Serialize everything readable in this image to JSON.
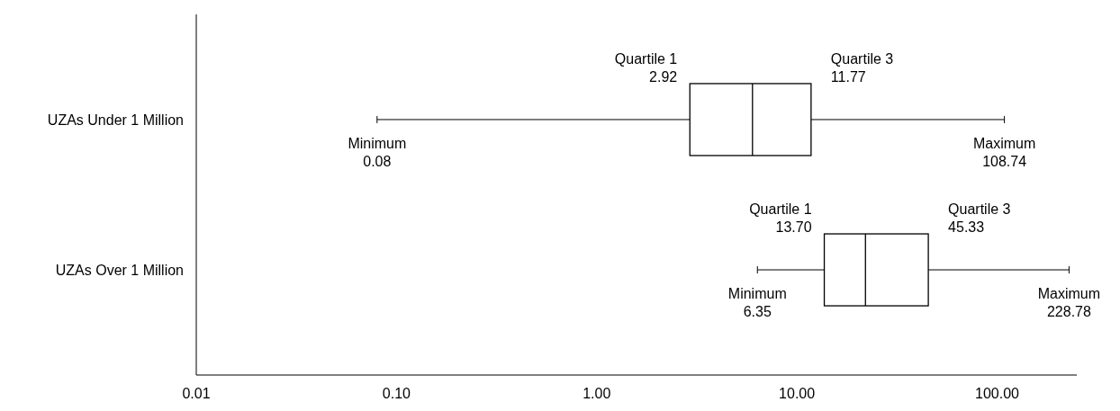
{
  "chart_data": {
    "type": "box",
    "orientation": "horizontal",
    "log": "x",
    "categories": [
      "UZAs Under 1 Million",
      "UZAs Over 1 Million"
    ],
    "boxes": [
      {
        "low": 0.08,
        "q1": 2.92,
        "median": 6.0,
        "q3": 11.77,
        "high": 108.74
      },
      {
        "low": 6.35,
        "q1": 13.7,
        "median": 22,
        "q3": 45.33,
        "high": 228.78
      }
    ],
    "xlim": [
      0.01,
      250
    ],
    "xticks": [
      {
        "value": 0.01,
        "label": "0.01"
      },
      {
        "value": 0.1,
        "label": "0.10"
      },
      {
        "value": 1,
        "label": "1.00"
      },
      {
        "value": 10,
        "label": "10.00"
      },
      {
        "value": 100,
        "label": "100.00"
      }
    ],
    "color": "#000000",
    "annotations": [
      {
        "text": "Minimum\n0.08",
        "x": 0.08,
        "y": "UZAs Under 1 Million"
      },
      {
        "text": "Quartile 1\n2.92",
        "x": 2.92,
        "y": "UZAs Under 1 Million"
      },
      {
        "text": "Quartile 3\n11.77",
        "x": 11.77,
        "y": "UZAs Under 1 Million"
      },
      {
        "text": "Maximum\n108.74",
        "x": 108.74,
        "y": "UZAs Under 1 Million"
      },
      {
        "text": "Minimum\n6.35",
        "x": 6.35,
        "y": "UZAs Over 1 Million"
      },
      {
        "text": "Quartile 1\n13.70",
        "x": 13.7,
        "y": "UZAs Over 1 Million"
      },
      {
        "text": "Quartile 3\n45.33",
        "x": 45.33,
        "y": "UZAs Over 1 Million"
      },
      {
        "text": "Maximum\n228.78",
        "x": 228.78,
        "y": "UZAs Over 1 Million"
      }
    ]
  }
}
